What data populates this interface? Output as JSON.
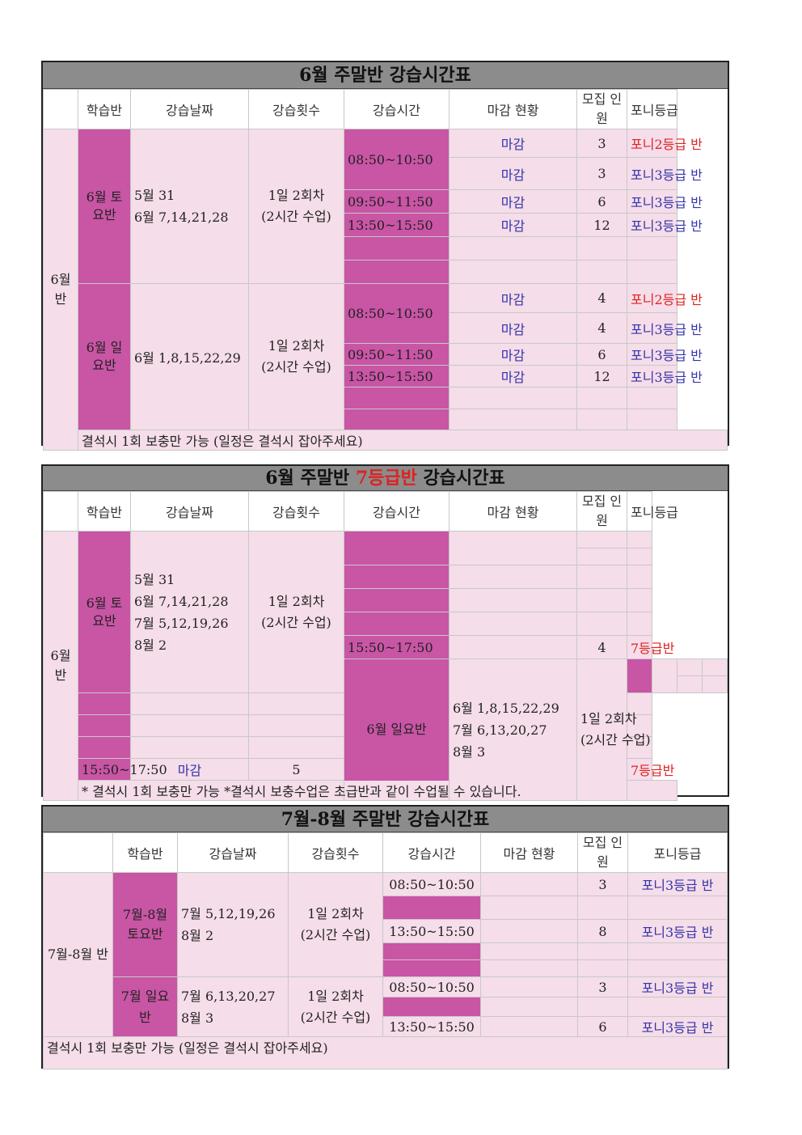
{
  "s1": {
    "title": "6월 주말반 강습시간표",
    "headers": {
      "class": "학습반",
      "date": "강습날짜",
      "count": "강습횟수",
      "time": "강습시간",
      "status": "마감 현황",
      "recruit": "모집 인원",
      "grade": "포니등급"
    },
    "group": "6월 반",
    "sat": {
      "name": "6월 토요반",
      "dates": [
        "5월 31",
        "6월 7,14,21,28"
      ],
      "count": [
        "1일 2회차",
        "(2시간 수업)"
      ]
    },
    "sun": {
      "name": "6월 일요반",
      "dates": [
        "6월 1,8,15,22,29"
      ],
      "count": [
        "1일 2회차",
        "(2시간 수업)"
      ]
    },
    "sat_rows": [
      {
        "time": "08:50~10:50",
        "status": "마감",
        "num": "3",
        "grade": "포니2등급 반"
      },
      {
        "time": "",
        "status": "마감",
        "num": "3",
        "grade": "포니3등급 반"
      },
      {
        "time": "09:50~11:50",
        "status": "마감",
        "num": "6",
        "grade": "포니3등급 반"
      },
      {
        "time": "13:50~15:50",
        "status": "마감",
        "num": "12",
        "grade": "포니3등급 반"
      }
    ],
    "sun_rows": [
      {
        "time": "08:50~10:50",
        "status": "마감",
        "num": "4",
        "grade": "포니2등급 반"
      },
      {
        "time": "",
        "status": "마감",
        "num": "4",
        "grade": "포니3등급 반"
      },
      {
        "time": "09:50~11:50",
        "status": "마감",
        "num": "6",
        "grade": "포니3등급 반"
      },
      {
        "time": "13:50~15:50",
        "status": "마감",
        "num": "12",
        "grade": "포니3등급 반"
      }
    ],
    "note": "결석시 1회 보충만 가능 (일정은 결석시 잡아주세요)"
  },
  "s2": {
    "title_a": "6월 주말반 ",
    "title_b": "7등급반",
    "title_c": " 강습시간표",
    "headers": {
      "class": "학습반",
      "date": "강습날짜",
      "count": "강습횟수",
      "time": "강습시간",
      "status": "마감 현황",
      "recruit": "모집 인원",
      "grade": "포니등급"
    },
    "group": "6월 반",
    "sat": {
      "name": "6월 토요반",
      "dates": [
        "5월 31",
        "6월 7,14,21,28",
        "7월 5,12,19,26",
        "8월 2"
      ],
      "count": [
        "1일 2회차",
        "(2시간 수업)"
      ],
      "time": "15:50~17:50",
      "status": "",
      "num": "4",
      "grade": "7등급반"
    },
    "sun": {
      "name": "6월 일요반",
      "dates": [
        "6월 1,8,15,22,29",
        "7월 6,13,20,27",
        "8월 3"
      ],
      "count": [
        "1일 2회차",
        "(2시간 수업)"
      ],
      "time": "15:50~17:50",
      "status": "마감",
      "num": "5",
      "grade": "7등급반"
    },
    "note": "* 결석시 1회 보충만 가능 *결석시 보충수업은 초급반과 같이 수업될 수 있습니다."
  },
  "s3": {
    "title": "7월-8월 주말반 강습시간표",
    "headers": {
      "class": "학습반",
      "date": "강습날짜",
      "count": "강습횟수",
      "time": "강습시간",
      "status": "마감 현황",
      "recruit": "모집 인원",
      "grade": "포니등급"
    },
    "group": "7월-8월 반",
    "sat": {
      "name": "7월-8월 토요반",
      "dates": [
        "7월 5,12,19,26",
        "8월 2"
      ],
      "count": [
        "1일 2회차",
        "(2시간 수업)"
      ]
    },
    "sun": {
      "name": "7월 일요반",
      "dates": [
        "7월 6,13,20,27",
        "8월 3"
      ],
      "count": [
        "1일 2회차",
        "(2시간 수업)"
      ]
    },
    "sat_rows": [
      {
        "time": "08:50~10:50",
        "num": "3",
        "grade": "포니3등급 반"
      },
      {
        "time": "13:50~15:50",
        "num": "8",
        "grade": "포니3등급 반"
      }
    ],
    "sun_rows": [
      {
        "time": "08:50~10:50",
        "num": "3",
        "grade": "포니3등급 반"
      },
      {
        "time": "13:50~15:50",
        "num": "6",
        "grade": "포니3등급 반"
      }
    ],
    "note": "결석시 1회 보충만 가능 (일정은 결석시 잡아주세요)"
  }
}
